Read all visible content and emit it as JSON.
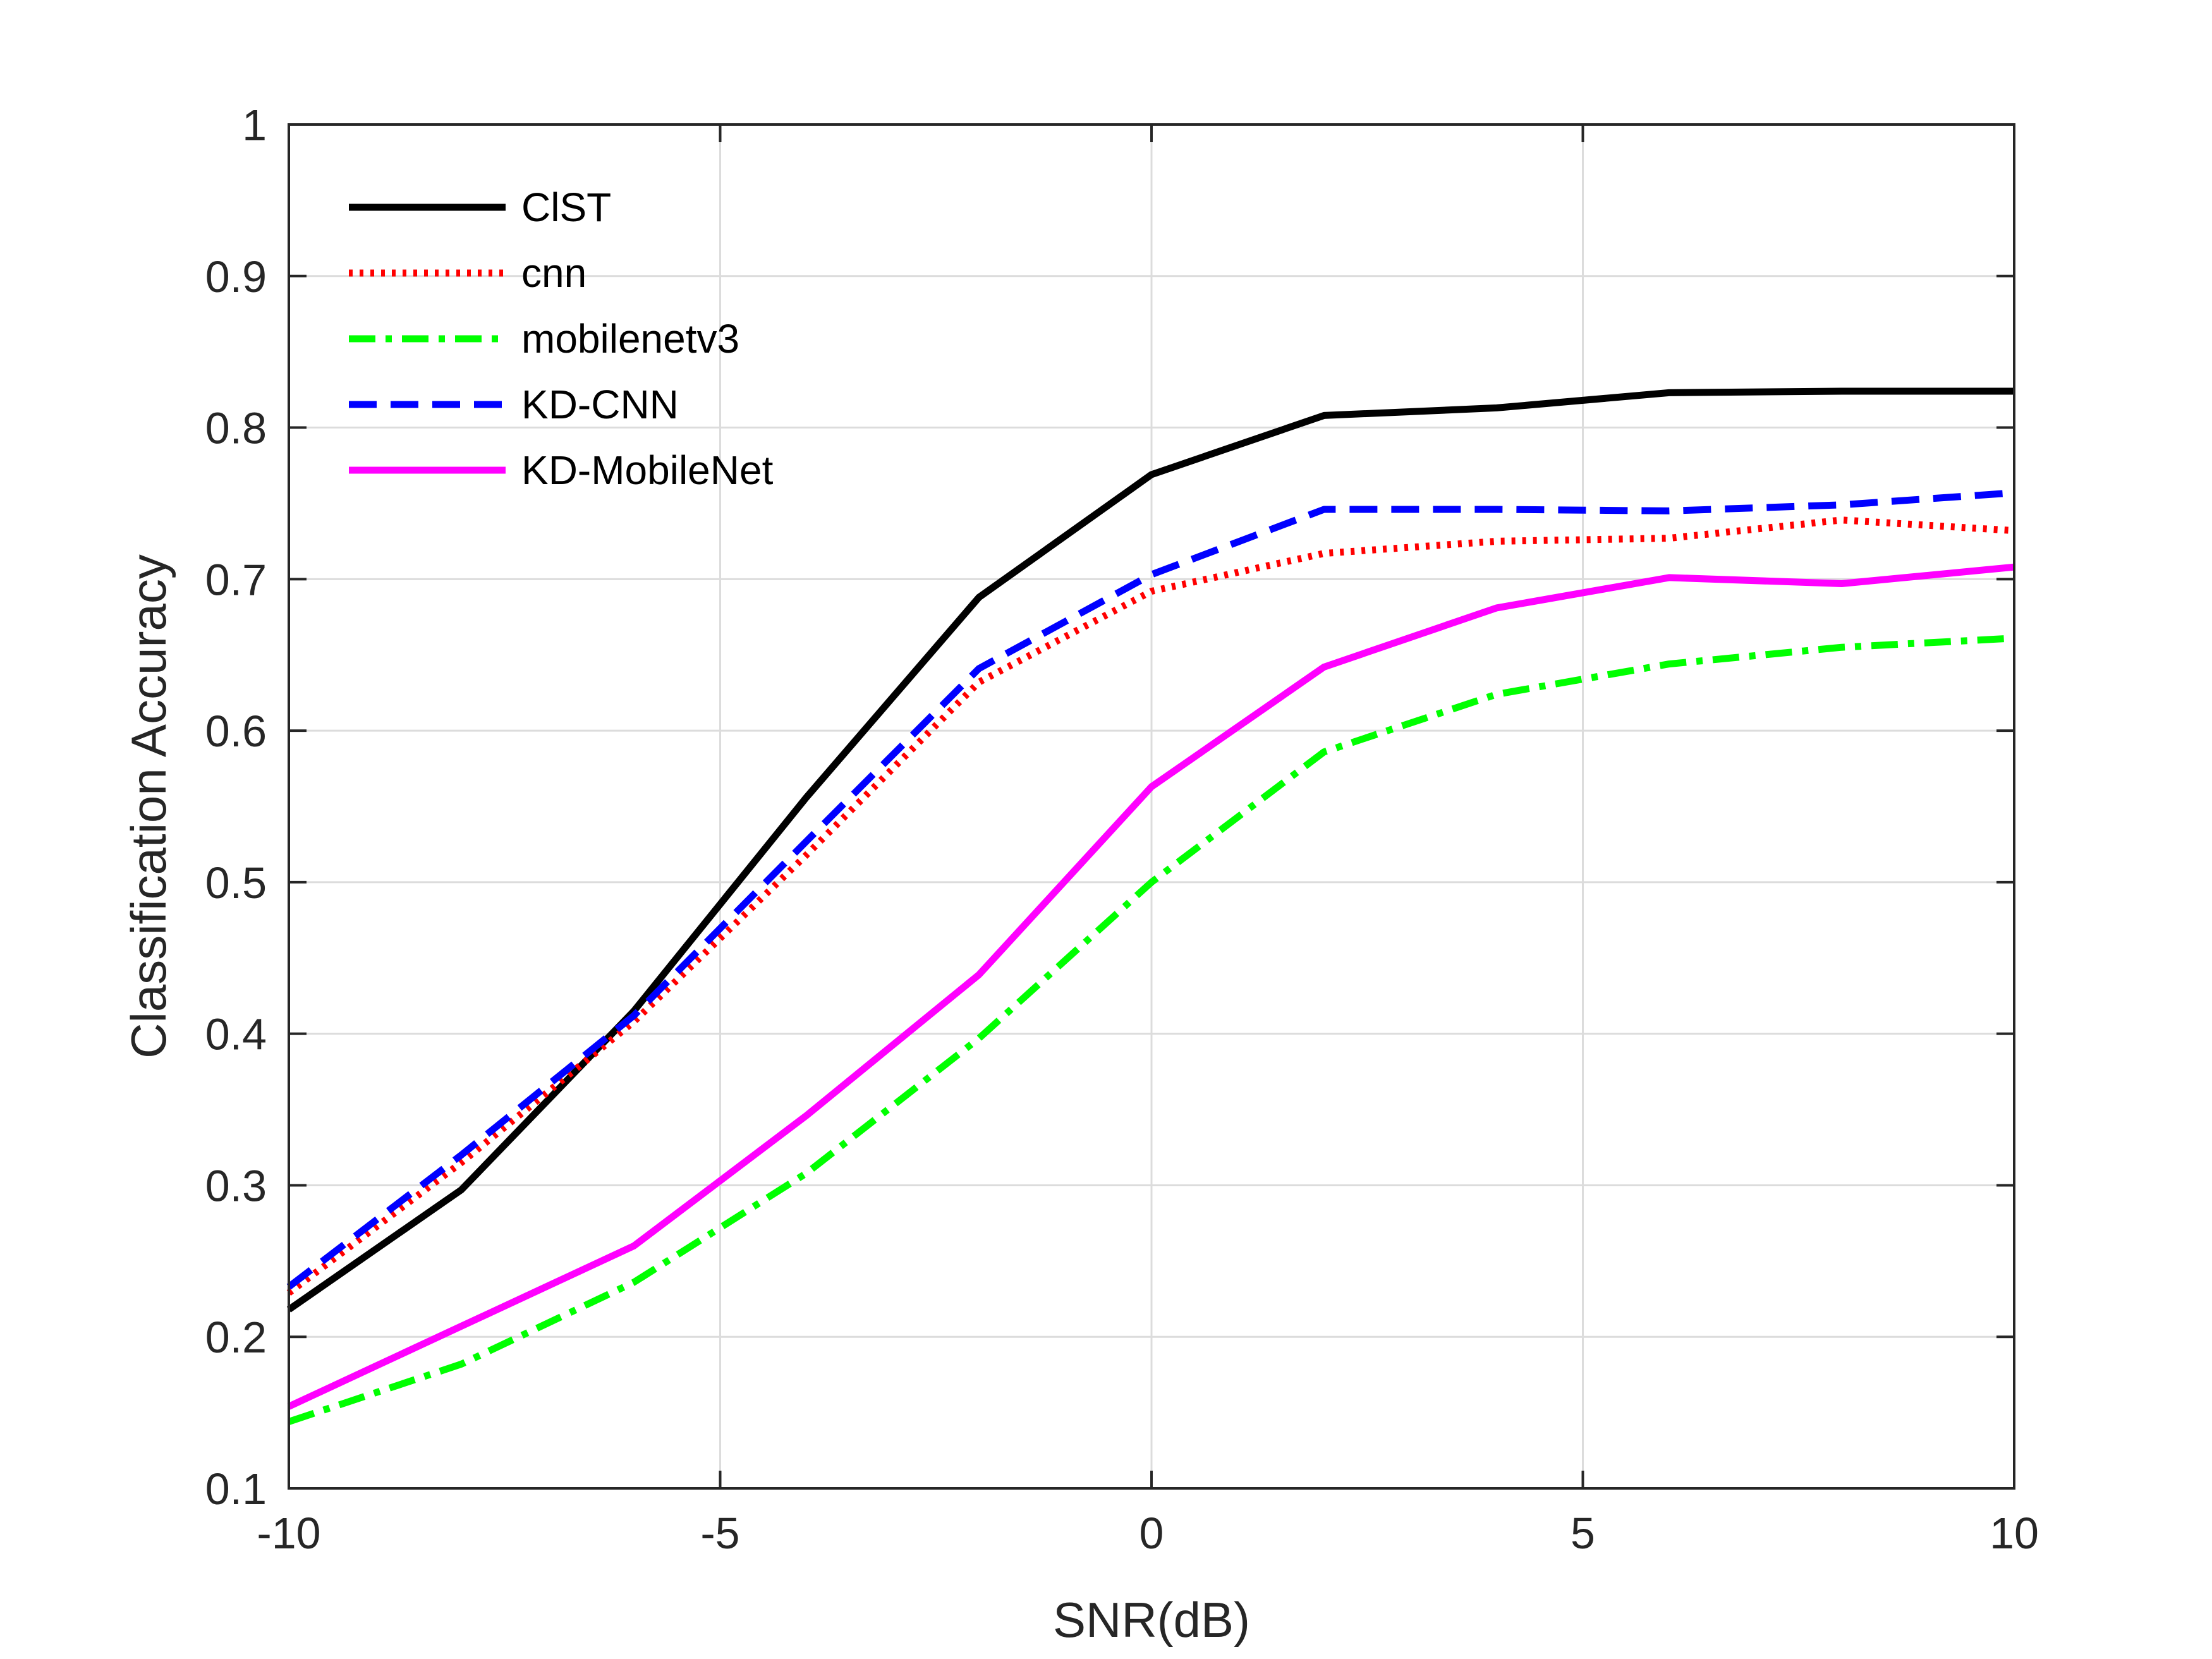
{
  "chart_data": {
    "type": "line",
    "title": "",
    "xlabel": "SNR(dB)",
    "ylabel": "Classification Accuracy",
    "xlim": [
      -10,
      10
    ],
    "ylim": [
      0.1,
      1
    ],
    "grid": true,
    "legend_position": "top-left",
    "x": [
      -10,
      -8,
      -6,
      -4,
      -2,
      0,
      2,
      4,
      6,
      8,
      10
    ],
    "x_ticks": [
      -10,
      -5,
      0,
      5,
      10
    ],
    "x_tick_labels": [
      "-10",
      "-5",
      "0",
      "5",
      "10"
    ],
    "y_ticks": [
      0.1,
      0.2,
      0.3,
      0.4,
      0.5,
      0.6,
      0.7,
      0.8,
      0.9,
      1
    ],
    "y_tick_labels": [
      "0.1",
      "0.2",
      "0.3",
      "0.4",
      "0.5",
      "0.6",
      "0.7",
      "0.8",
      "0.9",
      "1"
    ],
    "series": [
      {
        "name": "ClST",
        "color": "#000000",
        "style": "solid",
        "values": [
          0.218,
          0.297,
          0.415,
          0.556,
          0.688,
          0.769,
          0.808,
          0.813,
          0.823,
          0.824,
          0.824
        ]
      },
      {
        "name": "cnn",
        "color": "#ff0000",
        "style": "dotted",
        "values": [
          0.229,
          0.315,
          0.408,
          0.518,
          0.632,
          0.692,
          0.717,
          0.725,
          0.727,
          0.739,
          0.732
        ]
      },
      {
        "name": "mobilenetv3",
        "color": "#00ff00",
        "style": "dashdot",
        "values": [
          0.144,
          0.182,
          0.236,
          0.308,
          0.397,
          0.5,
          0.586,
          0.624,
          0.644,
          0.655,
          0.661
        ]
      },
      {
        "name": "KD-CNN",
        "color": "#0000ff",
        "style": "dashed",
        "values": [
          0.233,
          0.32,
          0.412,
          0.527,
          0.641,
          0.703,
          0.746,
          0.746,
          0.745,
          0.749,
          0.757
        ]
      },
      {
        "name": "KD-MobileNet",
        "color": "#ff00ff",
        "style": "solid",
        "values": [
          0.154,
          0.207,
          0.26,
          0.346,
          0.439,
          0.563,
          0.642,
          0.681,
          0.701,
          0.697,
          0.708
        ]
      }
    ]
  }
}
